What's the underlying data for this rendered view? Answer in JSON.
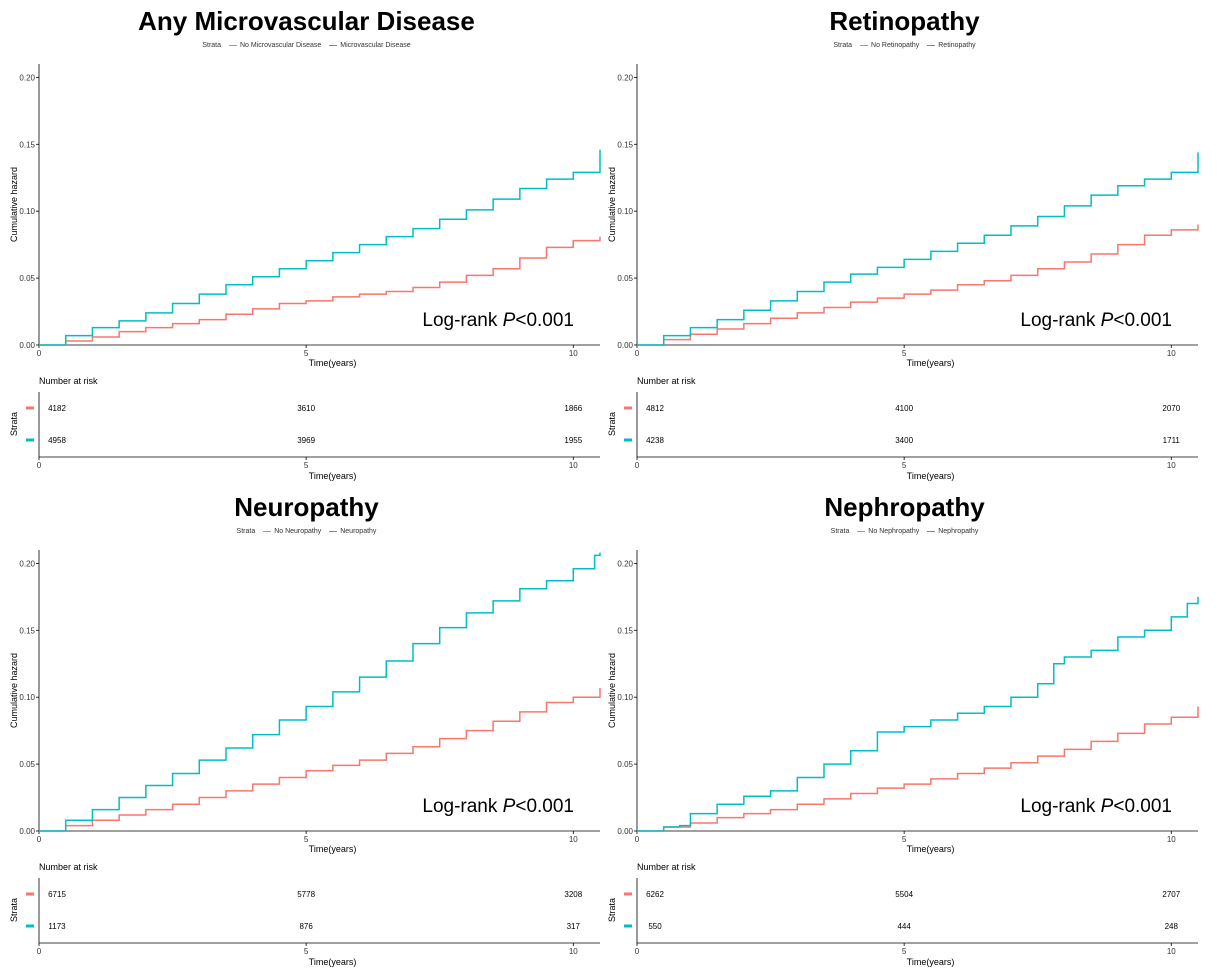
{
  "colors": {
    "no": "#F8766D",
    "yes": "#00BFC4",
    "axis": "#000000"
  },
  "common": {
    "ylabel": "Cumulative hazard",
    "xlabel": "Time(years)",
    "y_ticks": [
      "0.00",
      "0.05",
      "0.10",
      "0.15",
      "0.20"
    ],
    "x_ticks": [
      "0",
      "5",
      "10"
    ],
    "legend_title": "Strata",
    "risk_title": "Number at risk",
    "risk_ylabel": "Strata",
    "logrank_prefix": "Log-rank ",
    "logrank_p": "P",
    "logrank_value": "<0.001"
  },
  "chart_data": [
    {
      "type": "line",
      "title": "Any Microvascular Disease",
      "xlabel": "Time(years)",
      "ylabel": "Cumulative hazard",
      "xlim": [
        0,
        10.5
      ],
      "ylim": [
        0,
        0.21
      ],
      "series": [
        {
          "name": "No Microvascular Disease",
          "x": [
            0,
            0.5,
            1,
            1.5,
            2,
            2.5,
            3,
            3.5,
            4,
            4.5,
            5,
            5.5,
            6,
            6.5,
            7,
            7.5,
            8,
            8.5,
            9,
            9.5,
            10,
            10.5
          ],
          "values": [
            0,
            0.003,
            0.006,
            0.01,
            0.013,
            0.016,
            0.019,
            0.023,
            0.027,
            0.031,
            0.033,
            0.036,
            0.038,
            0.04,
            0.043,
            0.047,
            0.052,
            0.057,
            0.065,
            0.073,
            0.078,
            0.081
          ]
        },
        {
          "name": "Microvascular Disease",
          "x": [
            0,
            0.5,
            1,
            1.5,
            2,
            2.5,
            3,
            3.5,
            4,
            4.5,
            5,
            5.5,
            6,
            6.5,
            7,
            7.5,
            8,
            8.5,
            9,
            9.5,
            10,
            10.5
          ],
          "values": [
            0,
            0.007,
            0.013,
            0.018,
            0.024,
            0.031,
            0.038,
            0.045,
            0.051,
            0.057,
            0.063,
            0.069,
            0.075,
            0.081,
            0.087,
            0.094,
            0.101,
            0.109,
            0.117,
            0.124,
            0.129,
            0.146
          ]
        }
      ],
      "risk_table": {
        "times": [
          0,
          5,
          10
        ],
        "rows": [
          [
            "4182",
            "3610",
            "1866"
          ],
          [
            "4958",
            "3969",
            "1955"
          ]
        ]
      }
    },
    {
      "type": "line",
      "title": "Retinopathy",
      "xlabel": "Time(years)",
      "ylabel": "Cumulative hazard",
      "xlim": [
        0,
        10.5
      ],
      "ylim": [
        0,
        0.21
      ],
      "series": [
        {
          "name": "No Retinopathy",
          "x": [
            0,
            0.5,
            1,
            1.5,
            2,
            2.5,
            3,
            3.5,
            4,
            4.5,
            5,
            5.5,
            6,
            6.5,
            7,
            7.5,
            8,
            8.5,
            9,
            9.5,
            10,
            10.5
          ],
          "values": [
            0,
            0.004,
            0.008,
            0.012,
            0.016,
            0.02,
            0.024,
            0.028,
            0.032,
            0.035,
            0.038,
            0.041,
            0.045,
            0.048,
            0.052,
            0.057,
            0.062,
            0.068,
            0.075,
            0.082,
            0.086,
            0.09
          ]
        },
        {
          "name": "Retinopathy",
          "x": [
            0,
            0.5,
            1,
            1.5,
            2,
            2.5,
            3,
            3.5,
            4,
            4.5,
            5,
            5.5,
            6,
            6.5,
            7,
            7.5,
            8,
            8.5,
            9,
            9.5,
            10,
            10.5
          ],
          "values": [
            0,
            0.007,
            0.013,
            0.019,
            0.026,
            0.033,
            0.04,
            0.047,
            0.053,
            0.058,
            0.064,
            0.07,
            0.076,
            0.082,
            0.089,
            0.096,
            0.104,
            0.112,
            0.119,
            0.124,
            0.129,
            0.144
          ]
        }
      ],
      "risk_table": {
        "times": [
          0,
          5,
          10
        ],
        "rows": [
          [
            "4812",
            "4100",
            "2070"
          ],
          [
            "4238",
            "3400",
            "1711"
          ]
        ]
      }
    },
    {
      "type": "line",
      "title": "Neuropathy",
      "xlabel": "Time(years)",
      "ylabel": "Cumulative hazard",
      "xlim": [
        0,
        10.5
      ],
      "ylim": [
        0,
        0.21
      ],
      "series": [
        {
          "name": "No Neuropathy",
          "x": [
            0,
            0.5,
            1,
            1.5,
            2,
            2.5,
            3,
            3.5,
            4,
            4.5,
            5,
            5.5,
            6,
            6.5,
            7,
            7.5,
            8,
            8.5,
            9,
            9.5,
            10,
            10.5
          ],
          "values": [
            0,
            0.004,
            0.008,
            0.012,
            0.016,
            0.02,
            0.025,
            0.03,
            0.035,
            0.04,
            0.045,
            0.049,
            0.053,
            0.058,
            0.063,
            0.069,
            0.075,
            0.082,
            0.089,
            0.096,
            0.1,
            0.107
          ]
        },
        {
          "name": "Neuropathy",
          "x": [
            0,
            0.5,
            1,
            1.5,
            2,
            2.5,
            3,
            3.5,
            4,
            4.5,
            5,
            5.5,
            6,
            6.5,
            7,
            7.5,
            8,
            8.5,
            9,
            9.5,
            10,
            10.4,
            10.5
          ],
          "values": [
            0,
            0.008,
            0.016,
            0.025,
            0.034,
            0.043,
            0.053,
            0.062,
            0.072,
            0.083,
            0.093,
            0.104,
            0.115,
            0.127,
            0.14,
            0.152,
            0.163,
            0.172,
            0.181,
            0.187,
            0.196,
            0.206,
            0.208
          ]
        }
      ],
      "risk_table": {
        "times": [
          0,
          5,
          10
        ],
        "rows": [
          [
            "6715",
            "5778",
            "3208"
          ],
          [
            "1173",
            "876",
            "317"
          ]
        ]
      }
    },
    {
      "type": "line",
      "title": "Nephropathy",
      "xlabel": "Time(years)",
      "ylabel": "Cumulative hazard",
      "xlim": [
        0,
        10.5
      ],
      "ylim": [
        0,
        0.21
      ],
      "series": [
        {
          "name": "No Nephropathy",
          "x": [
            0,
            0.5,
            1,
            1.5,
            2,
            2.5,
            3,
            3.5,
            4,
            4.5,
            5,
            5.5,
            6,
            6.5,
            7,
            7.5,
            8,
            8.5,
            9,
            9.5,
            10,
            10.5
          ],
          "values": [
            0,
            0.003,
            0.006,
            0.01,
            0.013,
            0.016,
            0.02,
            0.024,
            0.028,
            0.032,
            0.035,
            0.039,
            0.043,
            0.047,
            0.051,
            0.056,
            0.061,
            0.067,
            0.073,
            0.08,
            0.085,
            0.093
          ]
        },
        {
          "name": "Nephropathy",
          "x": [
            0,
            0.5,
            0.8,
            1,
            1.5,
            2,
            2.5,
            3,
            3.5,
            4,
            4.5,
            5,
            5.5,
            6,
            6.5,
            7,
            7.5,
            7.8,
            8,
            8.5,
            9,
            9.5,
            10,
            10.3,
            10.5
          ],
          "values": [
            0,
            0.003,
            0.004,
            0.013,
            0.02,
            0.026,
            0.03,
            0.04,
            0.05,
            0.06,
            0.074,
            0.078,
            0.083,
            0.088,
            0.093,
            0.1,
            0.11,
            0.125,
            0.13,
            0.135,
            0.145,
            0.15,
            0.16,
            0.17,
            0.175
          ]
        }
      ],
      "risk_table": {
        "times": [
          0,
          5,
          10
        ],
        "rows": [
          [
            "6262",
            "5504",
            "2707"
          ],
          [
            "550",
            "444",
            "248"
          ]
        ]
      }
    }
  ]
}
